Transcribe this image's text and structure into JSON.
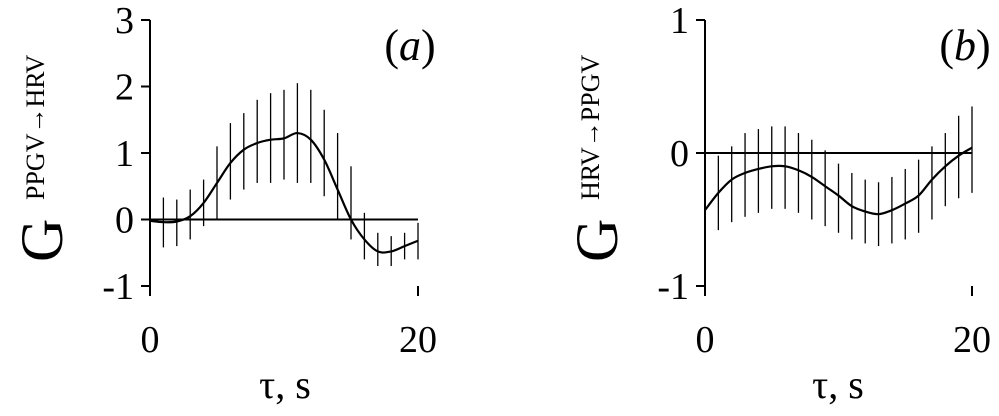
{
  "chart_data": [
    {
      "type": "line",
      "panel_label_open": "(",
      "panel_label_letter": "a",
      "panel_label_close": ")",
      "ylabel_main": "G",
      "ylabel_sub": "PPGV→HRV",
      "xlabel": "τ, s",
      "xlim": [
        0,
        20
      ],
      "ylim": [
        -1,
        3
      ],
      "xticks": [
        0,
        20
      ],
      "xtick_labels": [
        "0",
        "20"
      ],
      "yticks": [
        -1,
        0,
        1,
        2,
        3
      ],
      "ytick_labels": [
        "-1",
        "0",
        "1",
        "2",
        "3"
      ],
      "reference_line_y": 0,
      "grid": false,
      "curve": {
        "x": [
          0,
          1,
          2,
          3,
          4,
          5,
          6,
          7,
          8,
          9,
          10,
          11,
          12,
          13,
          14,
          15,
          16,
          17,
          18,
          19,
          20
        ],
        "y": [
          -0.02,
          -0.04,
          -0.03,
          0.05,
          0.25,
          0.55,
          0.85,
          1.05,
          1.15,
          1.2,
          1.22,
          1.3,
          1.2,
          0.9,
          0.45,
          0.0,
          -0.3,
          -0.48,
          -0.48,
          -0.4,
          -0.32
        ]
      },
      "errorbars": {
        "x": [
          0,
          1,
          2,
          3,
          4,
          5,
          6,
          7,
          8,
          9,
          10,
          11,
          12,
          13,
          14,
          15,
          16,
          17,
          18,
          19,
          20
        ],
        "lower": [
          -0.4,
          -0.42,
          -0.4,
          -0.3,
          -0.1,
          0.0,
          0.3,
          0.45,
          0.55,
          0.55,
          0.6,
          0.55,
          0.55,
          0.35,
          0.0,
          -0.3,
          -0.6,
          -0.7,
          -0.7,
          -0.6,
          -0.6
        ],
        "upper": [
          0.35,
          0.33,
          0.3,
          0.45,
          0.6,
          1.1,
          1.45,
          1.6,
          1.8,
          1.9,
          1.95,
          2.05,
          1.95,
          1.65,
          1.3,
          0.8,
          0.1,
          -0.2,
          -0.25,
          -0.2,
          -0.05
        ]
      }
    },
    {
      "type": "line",
      "panel_label_open": "(",
      "panel_label_letter": "b",
      "panel_label_close": ")",
      "ylabel_main": "G",
      "ylabel_sub": "HRV→PPGV",
      "xlabel": "τ, s",
      "xlim": [
        0,
        20
      ],
      "ylim": [
        -1,
        1
      ],
      "xticks": [
        0,
        20
      ],
      "xtick_labels": [
        "0",
        "20"
      ],
      "yticks": [
        -1,
        0,
        1
      ],
      "ytick_labels": [
        "-1",
        "0",
        "1"
      ],
      "reference_line_y": 0,
      "grid": false,
      "curve": {
        "x": [
          0,
          1,
          2,
          3,
          4,
          5,
          6,
          7,
          8,
          9,
          10,
          11,
          12,
          13,
          14,
          15,
          16,
          17,
          18,
          19,
          20
        ],
        "y": [
          -0.43,
          -0.3,
          -0.2,
          -0.15,
          -0.12,
          -0.1,
          -0.1,
          -0.13,
          -0.18,
          -0.25,
          -0.32,
          -0.4,
          -0.44,
          -0.46,
          -0.43,
          -0.38,
          -0.32,
          -0.2,
          -0.1,
          -0.02,
          0.04
        ]
      },
      "errorbars": {
        "x": [
          0,
          1,
          2,
          3,
          4,
          5,
          6,
          7,
          8,
          9,
          10,
          11,
          12,
          13,
          14,
          15,
          16,
          17,
          18,
          19,
          20
        ],
        "lower": [
          -0.62,
          -0.58,
          -0.52,
          -0.48,
          -0.45,
          -0.42,
          -0.42,
          -0.45,
          -0.5,
          -0.55,
          -0.6,
          -0.65,
          -0.68,
          -0.7,
          -0.68,
          -0.65,
          -0.6,
          -0.5,
          -0.4,
          -0.34,
          -0.3
        ],
        "upper": [
          -0.22,
          -0.02,
          0.05,
          0.15,
          0.18,
          0.2,
          0.2,
          0.15,
          0.1,
          0.02,
          -0.08,
          -0.15,
          -0.2,
          -0.22,
          -0.18,
          -0.12,
          -0.05,
          0.05,
          0.15,
          0.28,
          0.35
        ]
      }
    }
  ]
}
